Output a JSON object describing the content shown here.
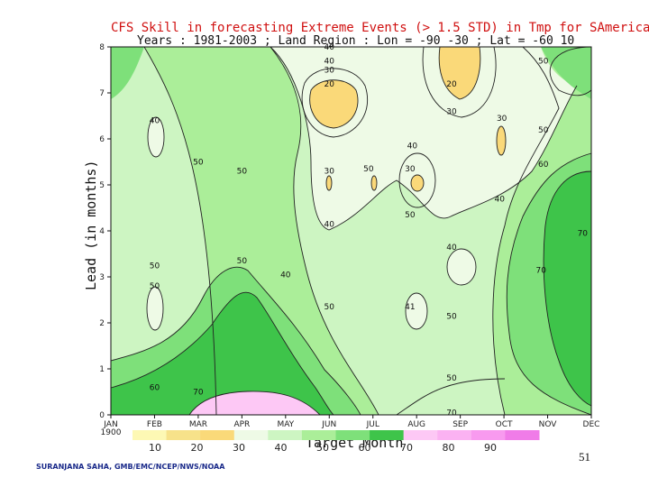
{
  "chart_data": {
    "type": "heatmap",
    "title": "CFS Skill in forecasting Extreme Events (> 1.5 STD) in Tmp for SAmerica",
    "subtitle": "Years : 1981-2003 ; Land Region : Lon = -90 -30 ; Lat = -60 10",
    "xlabel": "Target Month",
    "ylabel": "Lead (in months)",
    "x_ticks": [
      "JAN\n1900",
      "FEB",
      "MAR",
      "APR",
      "MAY",
      "JUN",
      "JUL",
      "AUG",
      "SEP",
      "OCT",
      "NOV",
      "DEC"
    ],
    "y_ticks": [
      "0",
      "1",
      "2",
      "3",
      "4",
      "5",
      "6",
      "7",
      "8"
    ],
    "ylim": [
      0,
      8
    ],
    "legend_levels": [
      "10",
      "20",
      "30",
      "40",
      "50",
      "60",
      "70",
      "80",
      "90"
    ],
    "legend_colors": [
      "#fdf8b4",
      "#f7e28a",
      "#fad979",
      "#eefae6",
      "#cdf5c2",
      "#abee99",
      "#7ee07a",
      "#3ec44a",
      "#fdc8f5",
      "#fbb2f2",
      "#f89aef",
      "#f07ce8"
    ],
    "contour_labels": [
      {
        "text": "40",
        "month": 5.0,
        "lead": 8.0
      },
      {
        "text": "40",
        "month": 5.0,
        "lead": 7.7
      },
      {
        "text": "30",
        "month": 5.0,
        "lead": 7.5
      },
      {
        "text": "20",
        "month": 5.0,
        "lead": 7.2
      },
      {
        "text": "50",
        "month": 9.9,
        "lead": 7.7
      },
      {
        "text": "20",
        "month": 7.8,
        "lead": 7.2
      },
      {
        "text": "30",
        "month": 7.8,
        "lead": 6.6
      },
      {
        "text": "30",
        "month": 8.95,
        "lead": 6.45
      },
      {
        "text": "50",
        "month": 9.9,
        "lead": 6.2
      },
      {
        "text": "40",
        "month": 1.0,
        "lead": 6.4
      },
      {
        "text": "40",
        "month": 6.9,
        "lead": 5.85
      },
      {
        "text": "50",
        "month": 2.0,
        "lead": 5.5
      },
      {
        "text": "50",
        "month": 3.0,
        "lead": 5.3
      },
      {
        "text": "30",
        "month": 5.0,
        "lead": 5.3
      },
      {
        "text": "50",
        "month": 5.9,
        "lead": 5.35
      },
      {
        "text": "30",
        "month": 6.85,
        "lead": 5.35
      },
      {
        "text": "60",
        "month": 9.9,
        "lead": 5.45
      },
      {
        "text": "40",
        "month": 8.9,
        "lead": 4.7
      },
      {
        "text": "50",
        "month": 6.85,
        "lead": 4.35
      },
      {
        "text": "40",
        "month": 5.0,
        "lead": 4.15
      },
      {
        "text": "70",
        "month": 10.8,
        "lead": 3.95
      },
      {
        "text": "40",
        "month": 7.8,
        "lead": 3.65
      },
      {
        "text": "50",
        "month": 1.0,
        "lead": 3.25
      },
      {
        "text": "50",
        "month": 3.0,
        "lead": 3.35
      },
      {
        "text": "40",
        "month": 4.0,
        "lead": 3.05
      },
      {
        "text": "70",
        "month": 9.85,
        "lead": 3.15
      },
      {
        "text": "50",
        "month": 1.0,
        "lead": 2.8
      },
      {
        "text": "50",
        "month": 5.0,
        "lead": 2.35
      },
      {
        "text": "41",
        "month": 6.85,
        "lead": 2.35
      },
      {
        "text": "50",
        "month": 7.8,
        "lead": 2.15
      },
      {
        "text": "50",
        "month": 7.8,
        "lead": 0.8
      },
      {
        "text": "60",
        "month": 1.0,
        "lead": 0.6
      },
      {
        "text": "70",
        "month": 2.0,
        "lead": 0.5
      },
      {
        "text": "70",
        "month": 7.8,
        "lead": 0.05
      }
    ]
  },
  "credit": "SURANJANA SAHA, GMB/EMC/NCEP/NWS/NOAA",
  "page_number": "51"
}
